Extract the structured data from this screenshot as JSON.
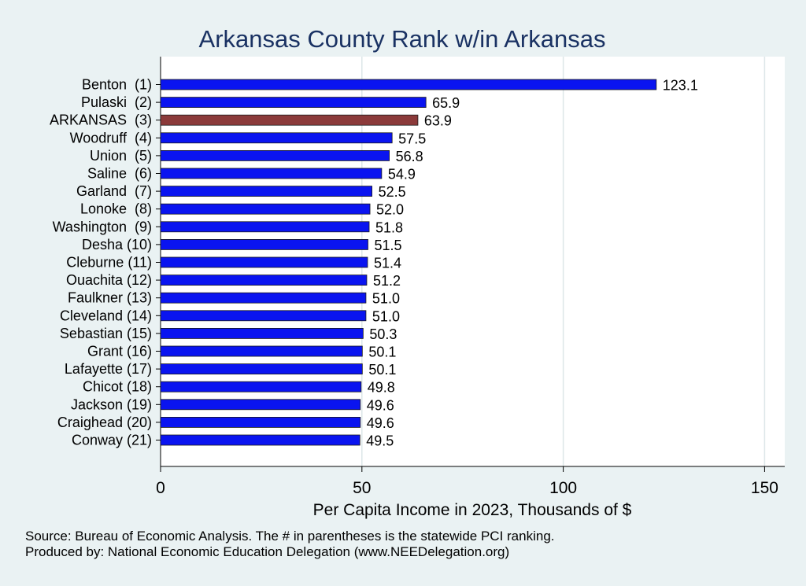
{
  "chart_data": {
    "type": "bar",
    "orientation": "horizontal",
    "title": "Arkansas County Rank w/in Arkansas",
    "xlabel": "Per Capita Income in 2023, Thousands of $",
    "ylabel": "",
    "xlim": [
      0,
      155
    ],
    "xticks": [
      "0",
      "50",
      "100",
      "150"
    ],
    "grid": true,
    "categories": [
      "Benton  (1)",
      "Pulaski  (2)",
      "ARKANSAS  (3)",
      "Woodruff  (4)",
      "Union  (5)",
      "Saline  (6)",
      "Garland  (7)",
      "Lonoke  (8)",
      "Washington  (9)",
      "Desha (10)",
      "Cleburne (11)",
      "Ouachita (12)",
      "Faulkner (13)",
      "Cleveland (14)",
      "Sebastian (15)",
      "Grant (16)",
      "Lafayette (17)",
      "Chicot (18)",
      "Jackson (19)",
      "Craighead (20)",
      "Conway (21)"
    ],
    "values": [
      123.1,
      65.9,
      63.9,
      57.5,
      56.8,
      54.9,
      52.5,
      52.0,
      51.8,
      51.5,
      51.4,
      51.2,
      51.0,
      51.0,
      50.3,
      50.1,
      50.1,
      49.8,
      49.6,
      49.6,
      49.5
    ],
    "value_labels": [
      "123.1",
      "65.9",
      "63.9",
      "57.5",
      "56.8",
      "54.9",
      "52.5",
      "52.0",
      "51.8",
      "51.5",
      "51.4",
      "51.2",
      "51.0",
      "51.0",
      "50.3",
      "50.1",
      "50.1",
      "49.8",
      "49.6",
      "49.6",
      "49.5"
    ],
    "highlight_index": 2,
    "colors": {
      "bar": "#0a14f0",
      "highlight": "#8b3a3a",
      "title": "#1a3263",
      "grid": "#dde6e8",
      "background": "#eaf2f3",
      "plot_background": "#ffffff"
    }
  },
  "notes": {
    "source": "Source: Bureau of Economic Analysis. The # in parentheses is the statewide PCI ranking.",
    "produced": "Produced by: National Economic Education Delegation (www.NEEDelegation.org)"
  }
}
